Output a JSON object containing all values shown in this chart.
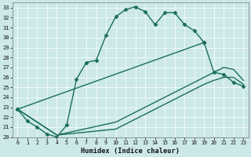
{
  "xlabel": "Humidex (Indice chaleur)",
  "ylabel": "",
  "background_color": "#cce8e8",
  "line_color": "#1a6e5e",
  "xlim": [
    -0.5,
    23.5
  ],
  "ylim": [
    20,
    33.5
  ],
  "xticks": [
    0,
    1,
    2,
    3,
    4,
    5,
    6,
    7,
    8,
    9,
    10,
    11,
    12,
    13,
    14,
    15,
    16,
    17,
    18,
    19,
    20,
    21,
    22,
    23
  ],
  "yticks": [
    20,
    21,
    22,
    23,
    24,
    25,
    26,
    27,
    28,
    29,
    30,
    31,
    32,
    33
  ],
  "series": [
    {
      "x": [
        0,
        1,
        2,
        3,
        4,
        5,
        6,
        7,
        8,
        9,
        10,
        11,
        12,
        13,
        14,
        15,
        16,
        17,
        18,
        19
      ],
      "y": [
        22.8,
        21.6,
        21.0,
        20.3,
        20.0,
        21.2,
        25.8,
        27.5,
        27.7,
        30.2,
        32.1,
        32.8,
        33.1,
        32.6,
        31.3,
        32.5,
        32.5,
        31.3,
        30.7,
        29.5
      ],
      "marker": "D",
      "markersize": 2.5,
      "linewidth": 1.0
    },
    {
      "x": [
        0,
        19,
        20,
        21,
        22,
        23
      ],
      "y": [
        22.8,
        29.5,
        26.5,
        26.3,
        25.5,
        25.1
      ],
      "marker": "D",
      "markersize": 2.5,
      "linewidth": 1.0
    },
    {
      "x": [
        0,
        4,
        10,
        11,
        12,
        13,
        14,
        15,
        16,
        17,
        18,
        19,
        20,
        21,
        22,
        23
      ],
      "y": [
        22.8,
        20.2,
        21.5,
        22.0,
        22.5,
        23.0,
        23.5,
        24.0,
        24.5,
        25.0,
        25.5,
        26.0,
        26.5,
        27.0,
        26.8,
        25.7
      ],
      "marker": null,
      "markersize": 0,
      "linewidth": 1.0
    },
    {
      "x": [
        0,
        4,
        10,
        11,
        12,
        13,
        14,
        15,
        16,
        17,
        18,
        19,
        20,
        21,
        22,
        23
      ],
      "y": [
        22.8,
        20.2,
        20.8,
        21.3,
        21.8,
        22.3,
        22.8,
        23.3,
        23.8,
        24.3,
        24.8,
        25.3,
        25.7,
        26.0,
        26.0,
        25.3
      ],
      "marker": null,
      "markersize": 0,
      "linewidth": 1.0
    }
  ]
}
